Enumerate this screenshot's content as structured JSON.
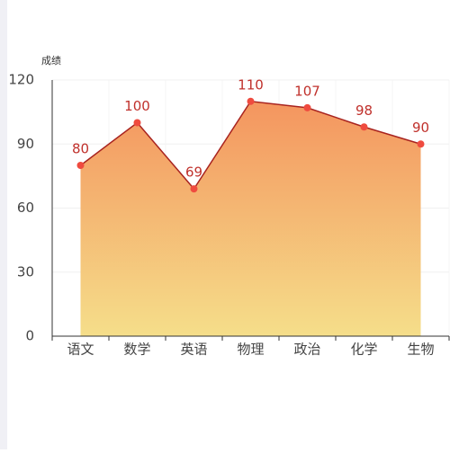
{
  "chart_data": {
    "type": "area",
    "y_axis_label": "成绩",
    "categories": [
      "语文",
      "数学",
      "英语",
      "物理",
      "政治",
      "化学",
      "生物"
    ],
    "values": [
      80,
      100,
      69,
      110,
      107,
      98,
      90
    ],
    "line_color": "#a8231f",
    "point_color": "#ef4b3f",
    "label_color": "#c0312c",
    "area_gradient": [
      "#f4955f",
      "#f5de8a"
    ],
    "ylim": [
      0,
      120
    ],
    "yticks": [
      0,
      30,
      60,
      90,
      120
    ],
    "grid": true
  }
}
